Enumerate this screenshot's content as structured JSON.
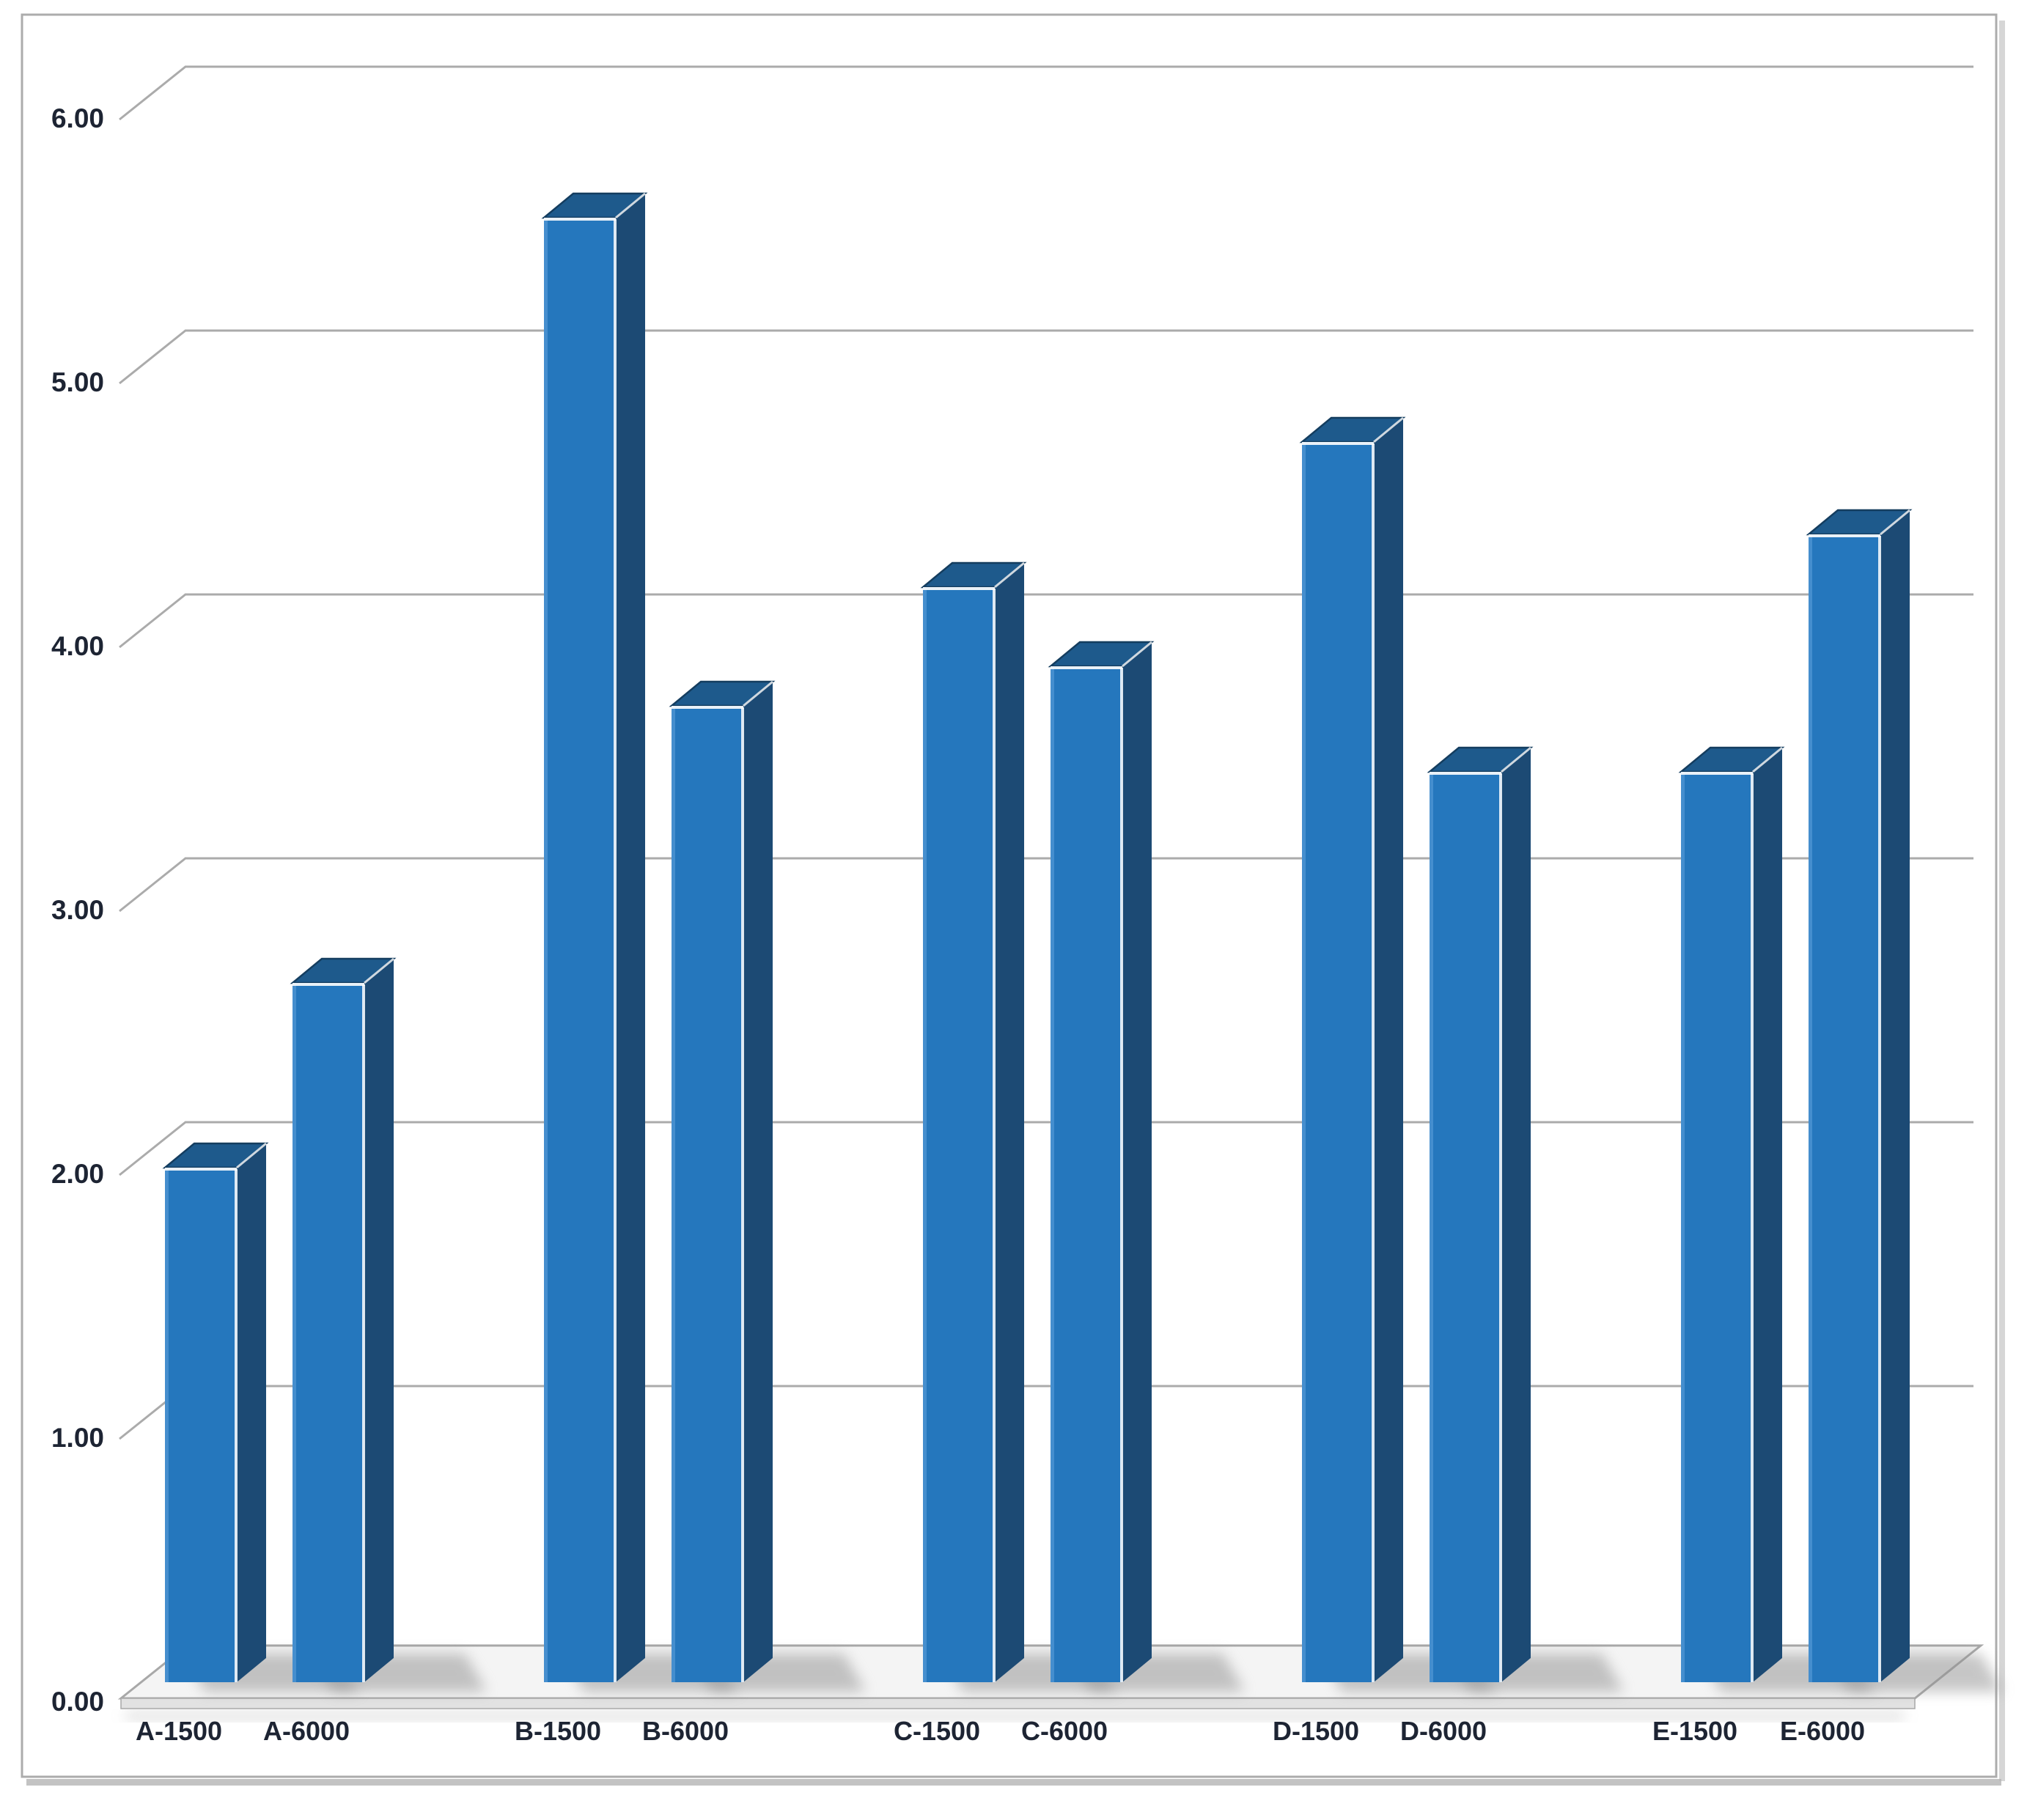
{
  "chart_data": {
    "type": "bar",
    "projection": "3d-column",
    "title": "",
    "xlabel": "",
    "ylabel": "",
    "categories": [
      "A-1500",
      "A-6000",
      "B-1500",
      "B-6000",
      "C-1500",
      "C-6000",
      "D-1500",
      "D-6000",
      "E-1500",
      "E-6000"
    ],
    "values": [
      1.95,
      2.65,
      5.55,
      3.7,
      4.15,
      3.85,
      4.7,
      3.45,
      3.45,
      4.35
    ],
    "ylim": [
      0,
      6
    ],
    "y_tick_step": 1,
    "y_tick_labels": [
      "0.00",
      "1.00",
      "2.00",
      "3.00",
      "4.00",
      "5.00",
      "6.00"
    ],
    "grid": true,
    "legend_position": "none",
    "colors": {
      "background": "#FFFFFF",
      "frame_border": "#ACACAC",
      "frame_shadow": "#B4B4B4",
      "gridline": "#ABABAB",
      "axis_text": "#1D2433",
      "floor_fill": "#F4F4F4",
      "floor_edge": "#A8A8A8",
      "floor_bevel": "#E2E2E2",
      "bar_front": "#2577BD",
      "bar_front_light": "#4D94D2",
      "bar_side": "#1C4A74",
      "bar_top": "#1E5A8C",
      "bar_top_edge": "#143D5F",
      "bar_highlight": "#FFFFFF",
      "bar_shadow": "#8F8F8F"
    }
  }
}
